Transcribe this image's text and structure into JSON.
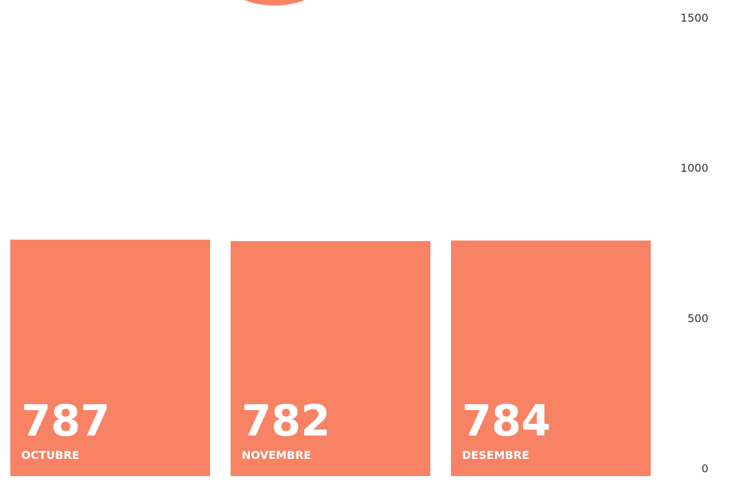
{
  "chart_data": {
    "type": "bar",
    "categories": [
      "OCTUBRE",
      "NOVEMBRE",
      "DESEMBRE"
    ],
    "values": [
      787,
      782,
      784
    ],
    "color": "#f88264",
    "ylim": [
      0,
      1500
    ],
    "yticks": [
      0,
      500,
      1000,
      1500
    ],
    "grid": false
  }
}
